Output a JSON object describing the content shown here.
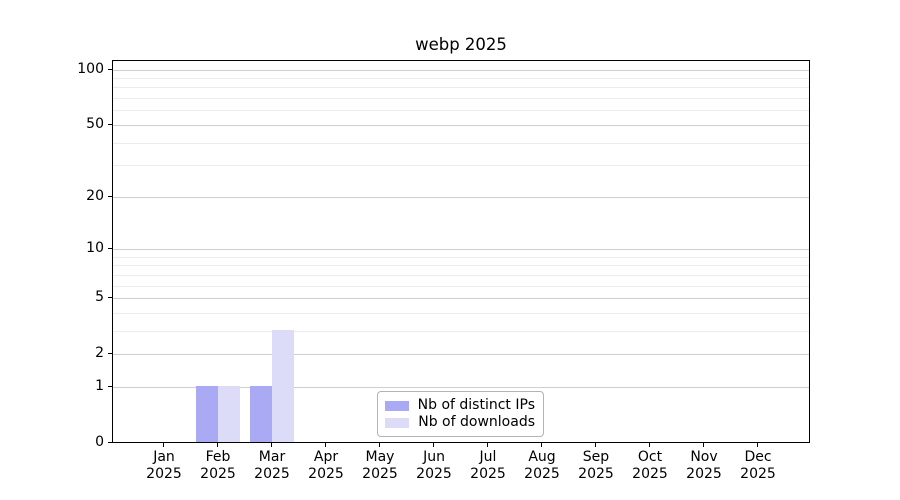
{
  "chart_data": {
    "type": "bar",
    "title": "webp 2025",
    "categories": [
      "Jan",
      "Feb",
      "Mar",
      "Apr",
      "May",
      "Jun",
      "Jul",
      "Aug",
      "Sep",
      "Oct",
      "Nov",
      "Dec"
    ],
    "category_year": "2025",
    "series": [
      {
        "name": "Nb of distinct IPs",
        "color": "#a9a9f4",
        "values": [
          0,
          1,
          1,
          0,
          0,
          0,
          0,
          0,
          0,
          0,
          0,
          0
        ]
      },
      {
        "name": "Nb of downloads",
        "color": "#dcdcf8",
        "values": [
          0,
          1,
          3,
          0,
          0,
          0,
          0,
          0,
          0,
          0,
          0,
          0
        ]
      }
    ],
    "xlabel": "",
    "ylabel": "",
    "y_scale": "log10(value+1)",
    "y_tick_values": [
      100,
      50,
      20,
      10,
      5,
      2,
      1,
      0
    ],
    "y_minor_gridline_values": [
      3,
      4,
      6,
      7,
      8,
      9,
      30,
      40,
      60,
      70,
      80,
      90
    ],
    "ylim": [
      0,
      114
    ],
    "grid": true,
    "legend_position": "lower center"
  },
  "colors": {
    "background": "#ffffff",
    "axis": "#000000",
    "major_grid": "#cfcfcf",
    "minor_grid": "#ececec",
    "text": "#000000",
    "legend_border": "#b3b3b3"
  }
}
